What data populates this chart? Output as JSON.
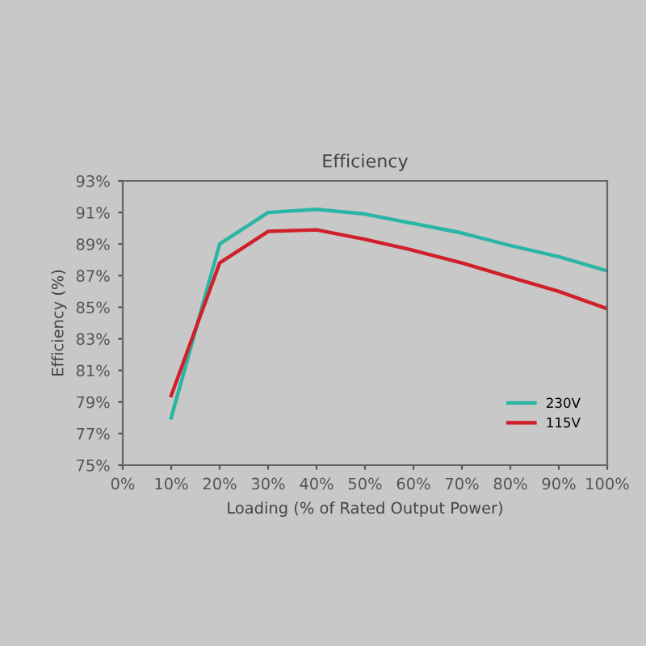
{
  "chart_data": {
    "type": "line",
    "title": "Efficiency",
    "xlabel": "Loading (% of Rated Output Power)",
    "ylabel": "Efficiency (%)",
    "x": [
      10,
      20,
      30,
      40,
      50,
      60,
      70,
      80,
      90,
      100
    ],
    "series": [
      {
        "name": "230V",
        "color": "#2ab5a5",
        "values": [
          78.0,
          89.0,
          91.0,
          91.2,
          90.9,
          90.3,
          89.7,
          88.9,
          88.2,
          87.3
        ]
      },
      {
        "name": "115V",
        "color": "#d0202a",
        "values": [
          79.4,
          87.8,
          89.8,
          89.9,
          89.3,
          88.6,
          87.8,
          86.9,
          86.0,
          84.9
        ]
      }
    ],
    "xlim": [
      0,
      100
    ],
    "xticks": [
      {
        "value": 0,
        "label": "0%"
      },
      {
        "value": 10,
        "label": "10%"
      },
      {
        "value": 20,
        "label": "20%"
      },
      {
        "value": 30,
        "label": "30%"
      },
      {
        "value": 40,
        "label": "40%"
      },
      {
        "value": 50,
        "label": "50%"
      },
      {
        "value": 60,
        "label": "60%"
      },
      {
        "value": 70,
        "label": "70%"
      },
      {
        "value": 80,
        "label": "80%"
      },
      {
        "value": 90,
        "label": "90%"
      },
      {
        "value": 100,
        "label": "100%"
      }
    ],
    "ylim": [
      75,
      93
    ],
    "yticks": [
      {
        "value": 75,
        "label": "75%"
      },
      {
        "value": 77,
        "label": "77%"
      },
      {
        "value": 79,
        "label": "79%"
      },
      {
        "value": 81,
        "label": "81%"
      },
      {
        "value": 83,
        "label": "83%"
      },
      {
        "value": 85,
        "label": "85%"
      },
      {
        "value": 87,
        "label": "87%"
      },
      {
        "value": 89,
        "label": "89%"
      },
      {
        "value": 91,
        "label": "91%"
      },
      {
        "value": 93,
        "label": "93%"
      }
    ],
    "grid": false,
    "legend": "bottom right",
    "marker": "none",
    "line_style": "solid"
  }
}
